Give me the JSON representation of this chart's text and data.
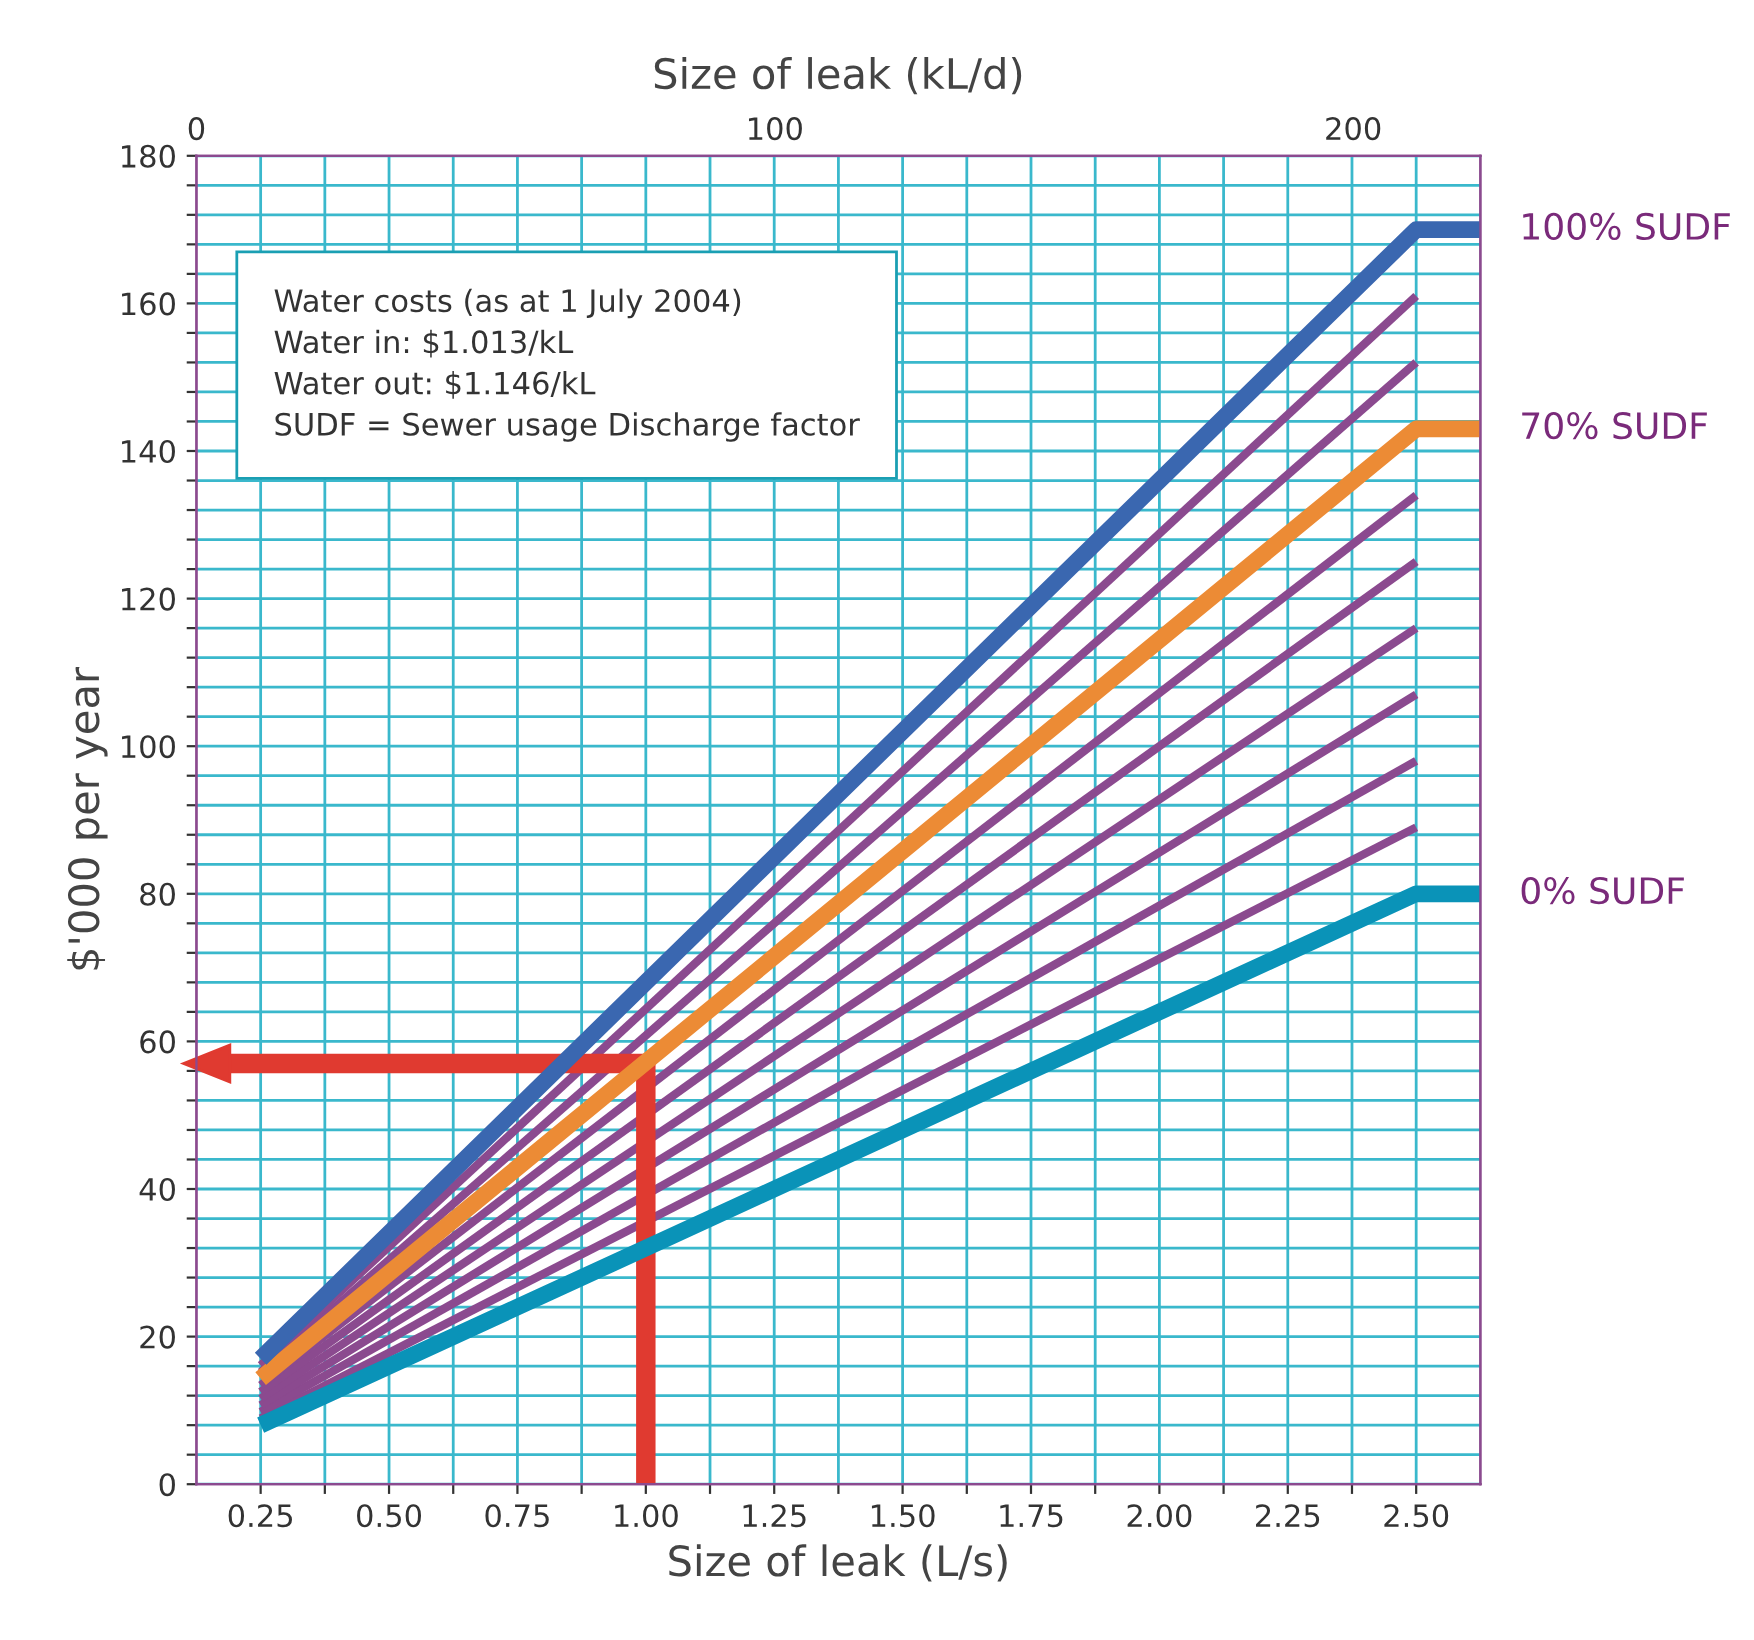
{
  "chart_data": {
    "type": "line",
    "xlabel": "Size of leak (L/s)",
    "ylabel": "$'000 per year",
    "x2label": "Size of leak (kL/d)",
    "xlim": [
      0.125,
      2.625
    ],
    "xticks": [
      {
        "value": 0.25,
        "label": "0.25"
      },
      {
        "value": 0.375,
        "label": null
      },
      {
        "value": 0.5,
        "label": "0.50"
      },
      {
        "value": 0.625,
        "label": null
      },
      {
        "value": 0.75,
        "label": "0.75"
      },
      {
        "value": 0.875,
        "label": null
      },
      {
        "value": 1.0,
        "label": "1.00"
      },
      {
        "value": 1.125,
        "label": null
      },
      {
        "value": 1.25,
        "label": "1.25"
      },
      {
        "value": 1.375,
        "label": null
      },
      {
        "value": 1.5,
        "label": "1.50"
      },
      {
        "value": 1.625,
        "label": null
      },
      {
        "value": 1.75,
        "label": "1.75"
      },
      {
        "value": 1.875,
        "label": null
      },
      {
        "value": 2.0,
        "label": "2.00"
      },
      {
        "value": 2.125,
        "label": null
      },
      {
        "value": 2.25,
        "label": "2.25"
      },
      {
        "value": 2.375,
        "label": null
      },
      {
        "value": 2.5,
        "label": "2.50"
      }
    ],
    "x2lim": [
      0,
      222
    ],
    "x2ticks": [
      0,
      100,
      200
    ],
    "ylim": [
      0,
      180
    ],
    "yticks": [
      0,
      {
        "value": 4,
        "label": null
      },
      {
        "value": 8,
        "label": null
      },
      {
        "value": 12,
        "label": null
      },
      {
        "value": 16,
        "label": null
      },
      20,
      {
        "value": 24,
        "label": null
      },
      {
        "value": 28,
        "label": null
      },
      {
        "value": 32,
        "label": null
      },
      {
        "value": 36,
        "label": null
      },
      40,
      {
        "value": 44,
        "label": null
      },
      {
        "value": 48,
        "label": null
      },
      {
        "value": 52,
        "label": null
      },
      {
        "value": 56,
        "label": null
      },
      60,
      {
        "value": 64,
        "label": null
      },
      {
        "value": 68,
        "label": null
      },
      {
        "value": 72,
        "label": null
      },
      {
        "value": 76,
        "label": null
      },
      80,
      {
        "value": 84,
        "label": null
      },
      {
        "value": 88,
        "label": null
      },
      {
        "value": 92,
        "label": null
      },
      {
        "value": 96,
        "label": null
      },
      100,
      {
        "value": 104,
        "label": null
      },
      {
        "value": 108,
        "label": null
      },
      {
        "value": 112,
        "label": null
      },
      {
        "value": 116,
        "label": null
      },
      120,
      {
        "value": 124,
        "label": null
      },
      {
        "value": 128,
        "label": null
      },
      {
        "value": 132,
        "label": null
      },
      {
        "value": 136,
        "label": null
      },
      140,
      {
        "value": 144,
        "label": null
      },
      {
        "value": 148,
        "label": null
      },
      {
        "value": 152,
        "label": null
      },
      {
        "value": 156,
        "label": null
      },
      160,
      {
        "value": 164,
        "label": null
      },
      {
        "value": 168,
        "label": null
      },
      {
        "value": 172,
        "label": null
      },
      {
        "value": 176,
        "label": null
      },
      180
    ],
    "grid": true,
    "legend": false,
    "marker": "none",
    "line_style": "solid",
    "series": [
      {
        "name": "0% SUDF",
        "color": "#0a93b8",
        "x": [
          0.25,
          2.5,
          2.625
        ],
        "values": [
          8,
          80,
          80
        ]
      },
      {
        "color": "#8b4a8f",
        "x": [
          0.25,
          2.5
        ],
        "values": [
          8.9,
          89
        ]
      },
      {
        "color": "#8b4a8f",
        "x": [
          0.25,
          2.5
        ],
        "values": [
          9.8,
          98
        ]
      },
      {
        "color": "#8b4a8f",
        "x": [
          0.25,
          2.5
        ],
        "values": [
          10.7,
          107
        ]
      },
      {
        "color": "#8b4a8f",
        "x": [
          0.25,
          2.5
        ],
        "values": [
          11.6,
          116
        ]
      },
      {
        "color": "#8b4a8f",
        "x": [
          0.25,
          2.5
        ],
        "values": [
          12.5,
          125
        ]
      },
      {
        "color": "#8b4a8f",
        "x": [
          0.25,
          2.5
        ],
        "values": [
          13.4,
          134
        ]
      },
      {
        "color": "#8b4a8f",
        "x": [
          0.25,
          2.5
        ],
        "values": [
          15.2,
          152
        ]
      },
      {
        "color": "#8b4a8f",
        "x": [
          0.25,
          2.5
        ],
        "values": [
          16.1,
          161
        ]
      },
      {
        "name": "70% SUDF",
        "color": "#ec8b35",
        "x": [
          0.25,
          2.5,
          2.625
        ],
        "values": [
          14.3,
          143,
          143
        ]
      },
      {
        "name": "100% SUDF",
        "color": "#3a67b0",
        "x": [
          0.25,
          2.5,
          2.625
        ],
        "values": [
          17,
          170,
          170
        ]
      },
      {
        "color": "#e03a30",
        "x": [
          1.0,
          1.0,
          0.17
        ],
        "values": [
          0,
          57,
          57
        ]
      }
    ],
    "annotations": [
      "Water costs (as at 1 July 2004)\nWater in: $1.013/kL\nWater out: $1.146/kL\nSUDF = Sewer usage Discharge factor"
    ]
  }
}
